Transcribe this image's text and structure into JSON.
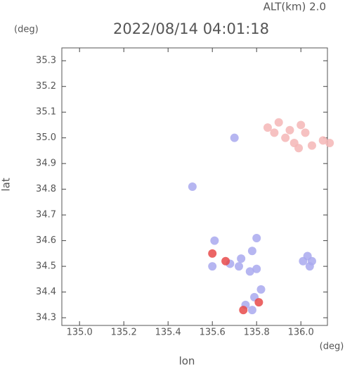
{
  "chart_data": {
    "type": "scatter",
    "annotation": "ALT(km) 2.0",
    "title": "2022/08/14 04:01:18",
    "y_unit": "(deg)",
    "x_unit": "(deg)",
    "ylabel": "lat",
    "xlabel": "lon",
    "xlim": [
      134.92,
      136.12
    ],
    "ylim": [
      34.27,
      35.35
    ],
    "xticks": [
      {
        "value": 135.0,
        "label": "135.0"
      },
      135.2,
      135.4,
      135.6,
      135.8,
      {
        "value": 136.0,
        "label": "136.0"
      }
    ],
    "yticks": [
      34.3,
      34.4,
      34.5,
      34.6,
      34.7,
      34.8,
      34.9,
      {
        "value": 35.0,
        "label": "35.0"
      },
      35.1,
      35.2,
      35.3
    ],
    "series": [
      {
        "color": "#f5b6b6",
        "x": [
          135.85,
          135.9,
          135.95,
          136.0,
          135.93,
          135.97,
          136.05,
          136.13,
          136.1,
          135.88,
          136.02,
          135.99
        ],
        "y": [
          35.04,
          35.06,
          35.03,
          35.05,
          35.0,
          34.98,
          34.97,
          34.98,
          34.99,
          35.02,
          35.02,
          34.96
        ]
      },
      {
        "color": "#a9a9ee",
        "x": [
          135.7,
          135.51,
          135.61,
          135.6,
          135.68,
          135.72,
          135.77,
          135.8,
          135.73,
          135.78,
          135.8,
          135.82,
          135.79,
          135.78,
          135.75,
          136.01,
          136.05,
          136.04,
          136.03
        ],
        "y": [
          35.0,
          34.81,
          34.6,
          34.5,
          34.51,
          34.5,
          34.48,
          34.49,
          34.53,
          34.56,
          34.61,
          34.41,
          34.38,
          34.33,
          34.35,
          34.52,
          34.52,
          34.5,
          34.54
        ]
      },
      {
        "color": "#e84a4a",
        "x": [
          135.74,
          135.6,
          135.66,
          135.81
        ],
        "y": [
          34.33,
          34.55,
          34.52,
          34.36
        ]
      }
    ]
  }
}
